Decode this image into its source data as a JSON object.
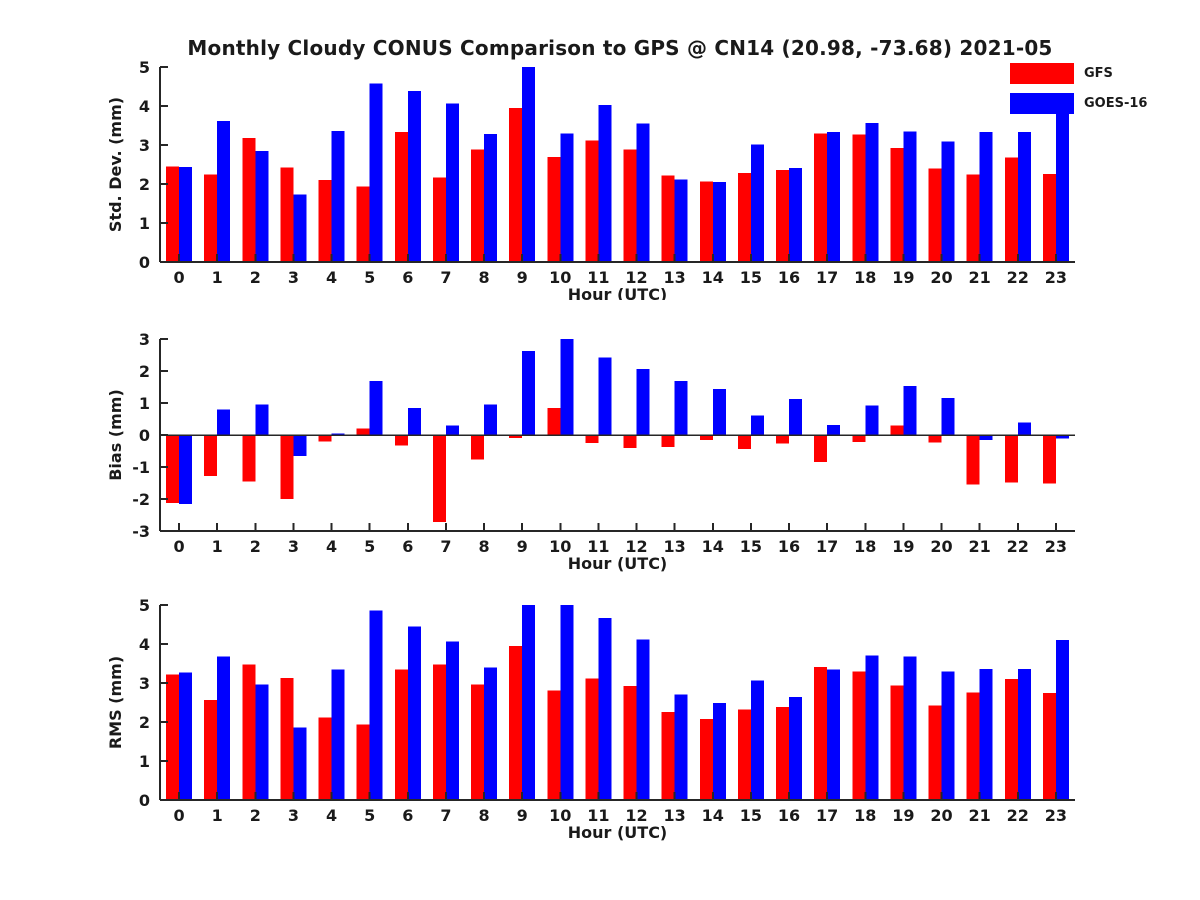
{
  "title": "Monthly Cloudy CONUS Comparison to GPS @ CN14 (20.98, -73.68) 2021-05",
  "legend": {
    "items": [
      {
        "label": "GFS",
        "color": "#ff0000"
      },
      {
        "label": "GOES-16",
        "color": "#0000ff"
      }
    ]
  },
  "colors": {
    "gfs": "#ff0000",
    "goes16": "#0000ff",
    "axis": "#262626",
    "text": "#1a1a1a"
  },
  "chart_data": [
    {
      "type": "bar",
      "panel": "std-dev",
      "ylabel": "Std. Dev. (mm)",
      "xlabel": "Hour (UTC)",
      "ylim": [
        0,
        5
      ],
      "yticks": [
        0,
        1,
        2,
        3,
        4,
        5
      ],
      "grid": false,
      "legend_position": "upper-right-outside-plot",
      "categories": [
        "0",
        "1",
        "2",
        "3",
        "4",
        "5",
        "6",
        "7",
        "8",
        "9",
        "10",
        "11",
        "12",
        "13",
        "14",
        "15",
        "16",
        "17",
        "18",
        "19",
        "20",
        "21",
        "22",
        "23"
      ],
      "series": [
        {
          "name": "GFS",
          "color": "#ff0000",
          "values": [
            2.45,
            2.25,
            3.18,
            2.42,
            2.1,
            1.93,
            3.33,
            2.17,
            2.88,
            3.95,
            2.69,
            3.12,
            2.89,
            2.22,
            2.07,
            2.28,
            2.36,
            3.29,
            3.27,
            2.92,
            2.4,
            2.25,
            2.68,
            2.26
          ]
        },
        {
          "name": "GOES-16",
          "color": "#0000ff",
          "values": [
            2.44,
            3.62,
            2.84,
            1.73,
            3.36,
            4.58,
            4.38,
            4.06,
            3.28,
            5.0,
            3.3,
            4.03,
            3.55,
            2.12,
            2.05,
            3.01,
            2.41,
            3.33,
            3.57,
            3.35,
            3.09,
            3.33,
            3.33,
            4.3
          ]
        }
      ]
    },
    {
      "type": "bar",
      "panel": "bias",
      "ylabel": "Bias (mm)",
      "xlabel": "Hour (UTC)",
      "ylim": [
        -3,
        3
      ],
      "yticks": [
        -3,
        -2,
        -1,
        0,
        1,
        2,
        3
      ],
      "grid": false,
      "categories": [
        "0",
        "1",
        "2",
        "3",
        "4",
        "5",
        "6",
        "7",
        "8",
        "9",
        "10",
        "11",
        "12",
        "13",
        "14",
        "15",
        "16",
        "17",
        "18",
        "19",
        "20",
        "21",
        "22",
        "23"
      ],
      "series": [
        {
          "name": "GFS",
          "color": "#ff0000",
          "values": [
            -2.13,
            -1.28,
            -1.45,
            -2.0,
            -0.2,
            0.2,
            -0.33,
            -2.72,
            -0.77,
            -0.09,
            0.85,
            -0.25,
            -0.41,
            -0.38,
            -0.15,
            -0.44,
            -0.27,
            -0.85,
            -0.22,
            0.29,
            -0.23,
            -1.55,
            -1.49,
            -1.52
          ]
        },
        {
          "name": "GOES-16",
          "color": "#0000ff",
          "values": [
            -2.16,
            0.8,
            0.95,
            -0.65,
            0.05,
            1.69,
            0.85,
            0.3,
            0.95,
            2.63,
            3.0,
            2.42,
            2.07,
            1.69,
            1.44,
            0.61,
            1.13,
            0.32,
            0.92,
            1.53,
            1.15,
            -0.15,
            0.39,
            -0.11
          ]
        }
      ]
    },
    {
      "type": "bar",
      "panel": "rms",
      "ylabel": "RMS (mm)",
      "xlabel": "Hour (UTC)",
      "ylim": [
        0,
        5
      ],
      "yticks": [
        0,
        1,
        2,
        3,
        4,
        5
      ],
      "grid": false,
      "categories": [
        "0",
        "1",
        "2",
        "3",
        "4",
        "5",
        "6",
        "7",
        "8",
        "9",
        "10",
        "11",
        "12",
        "13",
        "14",
        "15",
        "16",
        "17",
        "18",
        "19",
        "20",
        "21",
        "22",
        "23"
      ],
      "series": [
        {
          "name": "GFS",
          "color": "#ff0000",
          "values": [
            3.22,
            2.57,
            3.47,
            3.13,
            2.12,
            1.93,
            3.35,
            3.47,
            2.96,
            3.95,
            2.81,
            3.12,
            2.92,
            2.26,
            2.08,
            2.32,
            2.38,
            3.41,
            3.3,
            2.93,
            2.42,
            2.75,
            3.1,
            2.74
          ]
        },
        {
          "name": "GOES-16",
          "color": "#0000ff",
          "values": [
            3.27,
            3.68,
            2.96,
            1.86,
            3.34,
            4.86,
            4.45,
            4.07,
            3.4,
            5.0,
            5.0,
            4.67,
            4.12,
            2.7,
            2.49,
            3.07,
            2.64,
            3.35,
            3.71,
            3.68,
            3.3,
            3.36,
            3.36,
            4.1
          ]
        }
      ]
    }
  ]
}
